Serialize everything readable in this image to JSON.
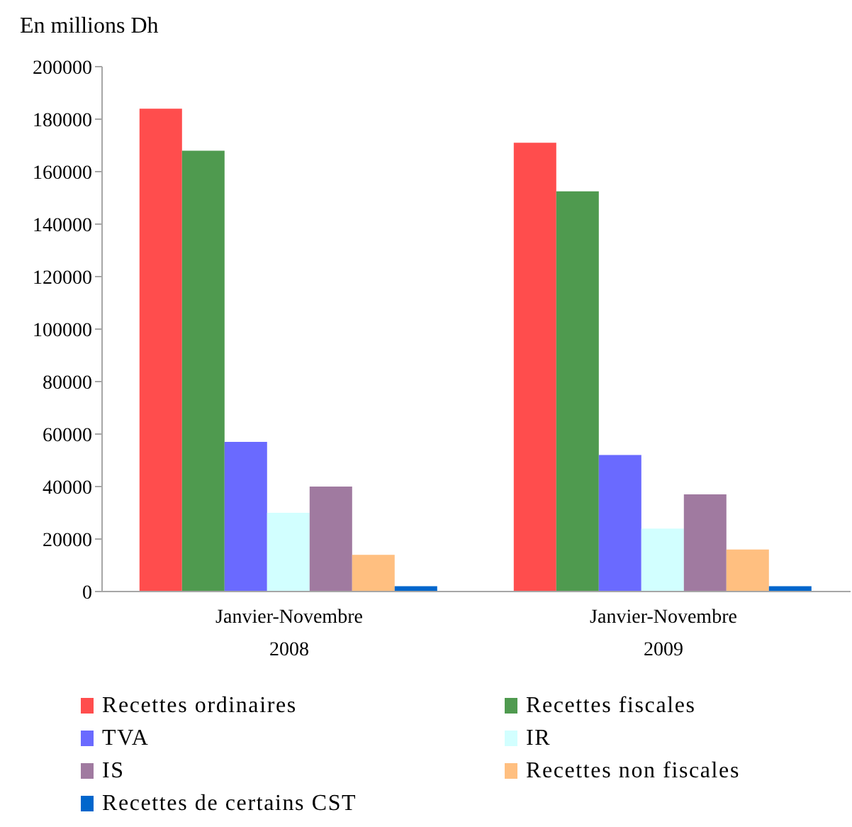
{
  "chart_data": {
    "type": "bar",
    "ylabel": "En millions Dh",
    "categories": [
      "Janvier-Novembre 2008",
      "Janvier-Novembre 2009"
    ],
    "series": [
      {
        "name": "Recettes ordinaires",
        "color": "#ff4d4d",
        "values": [
          184000,
          171000
        ]
      },
      {
        "name": "Recettes fiscales",
        "color": "#4f9a4f",
        "values": [
          168000,
          152500
        ]
      },
      {
        "name": "TVA",
        "color": "#6a6aff",
        "values": [
          57000,
          52000
        ]
      },
      {
        "name": "IR",
        "color": "#d2ffff",
        "values": [
          30000,
          24000
        ]
      },
      {
        "name": "IS",
        "color": "#a07aa0",
        "values": [
          40000,
          37000
        ]
      },
      {
        "name": "Recettes non fiscales",
        "color": "#ffbf80",
        "values": [
          14000,
          16000
        ]
      },
      {
        "name": "Recettes de certains CST",
        "color": "#0066cc",
        "values": [
          2000,
          2000
        ]
      }
    ],
    "ylim": [
      0,
      200000
    ],
    "yticks": [
      0,
      20000,
      40000,
      60000,
      80000,
      100000,
      120000,
      140000,
      160000,
      180000,
      200000
    ],
    "legend": "bottom"
  }
}
